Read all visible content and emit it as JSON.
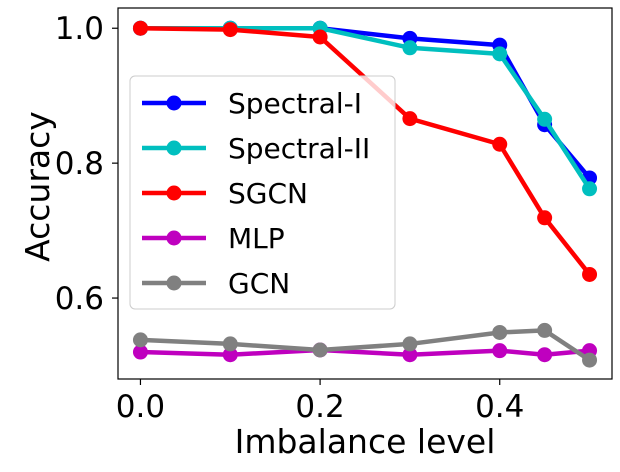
{
  "chart_data": {
    "type": "line",
    "title": "",
    "xlabel": "Imbalance level",
    "ylabel": "Accuracy",
    "xlim": [
      -0.025,
      0.525
    ],
    "ylim": [
      0.48,
      1.03
    ],
    "xticks": [
      0.0,
      0.2,
      0.4
    ],
    "xtick_labels": [
      "0.0",
      "0.2",
      "0.4"
    ],
    "yticks": [
      0.6,
      0.8,
      1.0
    ],
    "ytick_labels": [
      "0.6",
      "0.8",
      "1.0"
    ],
    "grid": false,
    "legend_position": "center-left",
    "x": [
      0.0,
      0.1,
      0.2,
      0.3,
      0.4,
      0.45,
      0.5
    ],
    "series": [
      {
        "name": "Spectral-I",
        "color": "#0000ff",
        "values": [
          1.0,
          1.0,
          1.0,
          0.985,
          0.975,
          0.857,
          0.778
        ]
      },
      {
        "name": "Spectral-II",
        "color": "#00bfbf",
        "values": [
          1.0,
          1.0,
          1.0,
          0.971,
          0.962,
          0.865,
          0.762
        ]
      },
      {
        "name": "SGCN",
        "color": "#ff0000",
        "values": [
          1.0,
          0.998,
          0.987,
          0.866,
          0.828,
          0.719,
          0.635
        ]
      },
      {
        "name": "MLP",
        "color": "#bf00bf",
        "values": [
          0.52,
          0.516,
          0.523,
          0.516,
          0.522,
          0.516,
          0.522
        ]
      },
      {
        "name": "GCN",
        "color": "#808080",
        "values": [
          0.538,
          0.532,
          0.523,
          0.532,
          0.549,
          0.552,
          0.508
        ]
      }
    ]
  }
}
